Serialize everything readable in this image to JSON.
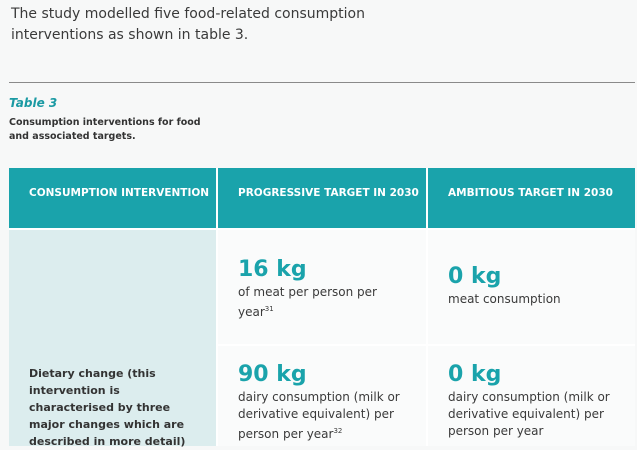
{
  "intro_text": "The study modelled five food-related consumption interventions as shown in table 3.",
  "table_label": "Table 3",
  "table_caption": "Consumption interventions for food and associated targets.",
  "headers": [
    "CONSUMPTION INTERVENTION",
    "PROGRESSIVE TARGET IN 2030",
    "AMBITIOUS TARGET IN 2030"
  ],
  "rows": [
    {
      "progressive": {
        "value": "16 kg",
        "text": "of meat per person per year",
        "sup": "31"
      },
      "ambitious": {
        "value": "0 kg",
        "text": "meat consumption",
        "sup": ""
      }
    },
    {
      "progressive": {
        "value": "90 kg",
        "text": "dairy consumption (milk or derivative equivalent) per person per year",
        "sup": "32"
      },
      "ambitious": {
        "value": "0 kg",
        "text": "dairy consumption (milk or derivative equivalent) per person per year",
        "sup": ""
      }
    }
  ],
  "intervention": "Dietary change (this intervention is characterised by three major changes which are described in more detail)"
}
